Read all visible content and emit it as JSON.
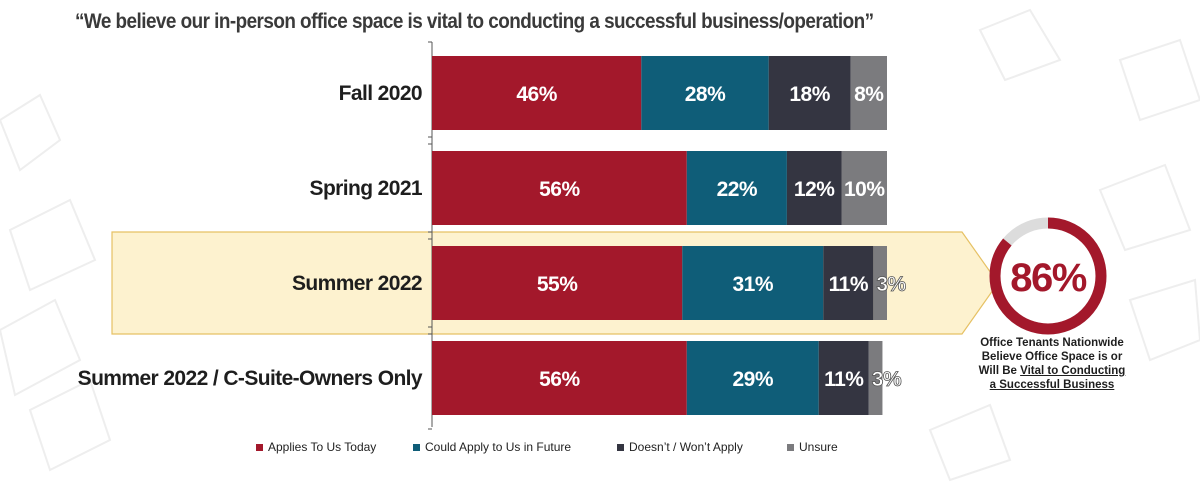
{
  "title": "“We believe our in-person office space is vital to conducting a successful business/operation”",
  "colors": {
    "applies": "#a3182b",
    "could": "#0f5d78",
    "doesnt": "#343541",
    "unsure": "#7b7b7e",
    "highlight_fill": "#fdf2cf",
    "highlight_stroke": "#e6c164",
    "gauge_ring": "#a3182b",
    "gauge_track": "#dcdcdc"
  },
  "chart_data": {
    "type": "bar",
    "orientation": "horizontal",
    "stacked": true,
    "categories": [
      "Fall 2020",
      "Spring 2021",
      "Summer 2022",
      "Summer 2022 / C-Suite-Owners Only"
    ],
    "series": [
      {
        "name": "Applies To Us Today",
        "values": [
          46,
          56,
          55,
          56
        ],
        "labels": [
          "46%",
          "56%",
          "55%",
          "56%"
        ]
      },
      {
        "name": "Could Apply to Us in Future",
        "values": [
          28,
          22,
          31,
          29
        ],
        "labels": [
          "28%",
          "22%",
          "31%",
          "29%"
        ]
      },
      {
        "name": "Doesn’t / Won’t Apply",
        "values": [
          18,
          12,
          11,
          11
        ],
        "labels": [
          "18%",
          "12%",
          "11%",
          "11%"
        ]
      },
      {
        "name": "Unsure",
        "values": [
          8,
          10,
          3,
          3
        ],
        "labels": [
          "8%",
          "10%",
          "3%",
          "3%"
        ]
      }
    ],
    "highlighted_category": "Summer 2022",
    "legend_position": "bottom"
  },
  "callout": {
    "value": 86,
    "value_label": "86%",
    "caption_line1": "Office Tenants Nationwide",
    "caption_line2": "Believe Office Space is or",
    "caption_line3_plain": "Will Be ",
    "caption_line3_underlined": "Vital to Conducting",
    "caption_line4_underlined": "a Successful Business"
  }
}
